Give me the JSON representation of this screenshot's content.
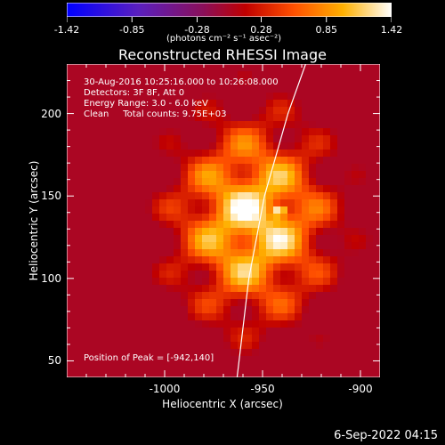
{
  "colorbar": {
    "ticks": [
      "-1.42",
      "-0.85",
      "-0.28",
      "0.28",
      "0.85",
      "1.42"
    ],
    "units": "(photons cm⁻² s⁻¹ asec⁻²)"
  },
  "title": "Reconstructed RHESSI Image",
  "annotations": [
    "30-Aug-2016 10:25:16.000 to 10:26:08.000",
    "Detectors: 3F 8F, Att 0",
    "Energy Range: 3.0 - 6.0 keV",
    "Clean     Total counts: 9.75E+03"
  ],
  "peak_text": "Position of Peak = [-942,140]",
  "timestamp": "6-Sep-2022 04:15",
  "colors": {
    "background": "#000000",
    "axis": "#ffffff",
    "limb": "#ffffff"
  },
  "chart_data": {
    "type": "heatmap",
    "title": "Reconstructed RHESSI Image",
    "xlabel": "Heliocentric X (arcsec)",
    "ylabel": "Heliocentric Y (arcsec)",
    "xlim": [
      -1050,
      -890
    ],
    "ylim": [
      40,
      230
    ],
    "x_ticks": [
      -1000,
      -950,
      -900
    ],
    "x_tick_labels": [
      "-1000",
      "-950",
      "-900"
    ],
    "y_ticks": [
      50,
      100,
      150,
      200
    ],
    "y_tick_labels": [
      "50",
      "100",
      "150",
      "200"
    ],
    "colorbar_range": [
      -1.42,
      1.42
    ],
    "colorbar_ticks": [
      -1.42,
      -0.85,
      -0.28,
      0.28,
      0.85,
      1.42
    ],
    "colormap": "rainbow-like: blue-purple-red-orange-yellow-white",
    "peak_position": [
      -942,
      140
    ],
    "solar_limb": true,
    "source": {
      "center": [
        -955,
        135
      ],
      "sigma_x": 28,
      "sigma_y": 42,
      "peak_value": 1.42
    },
    "grid": false
  }
}
